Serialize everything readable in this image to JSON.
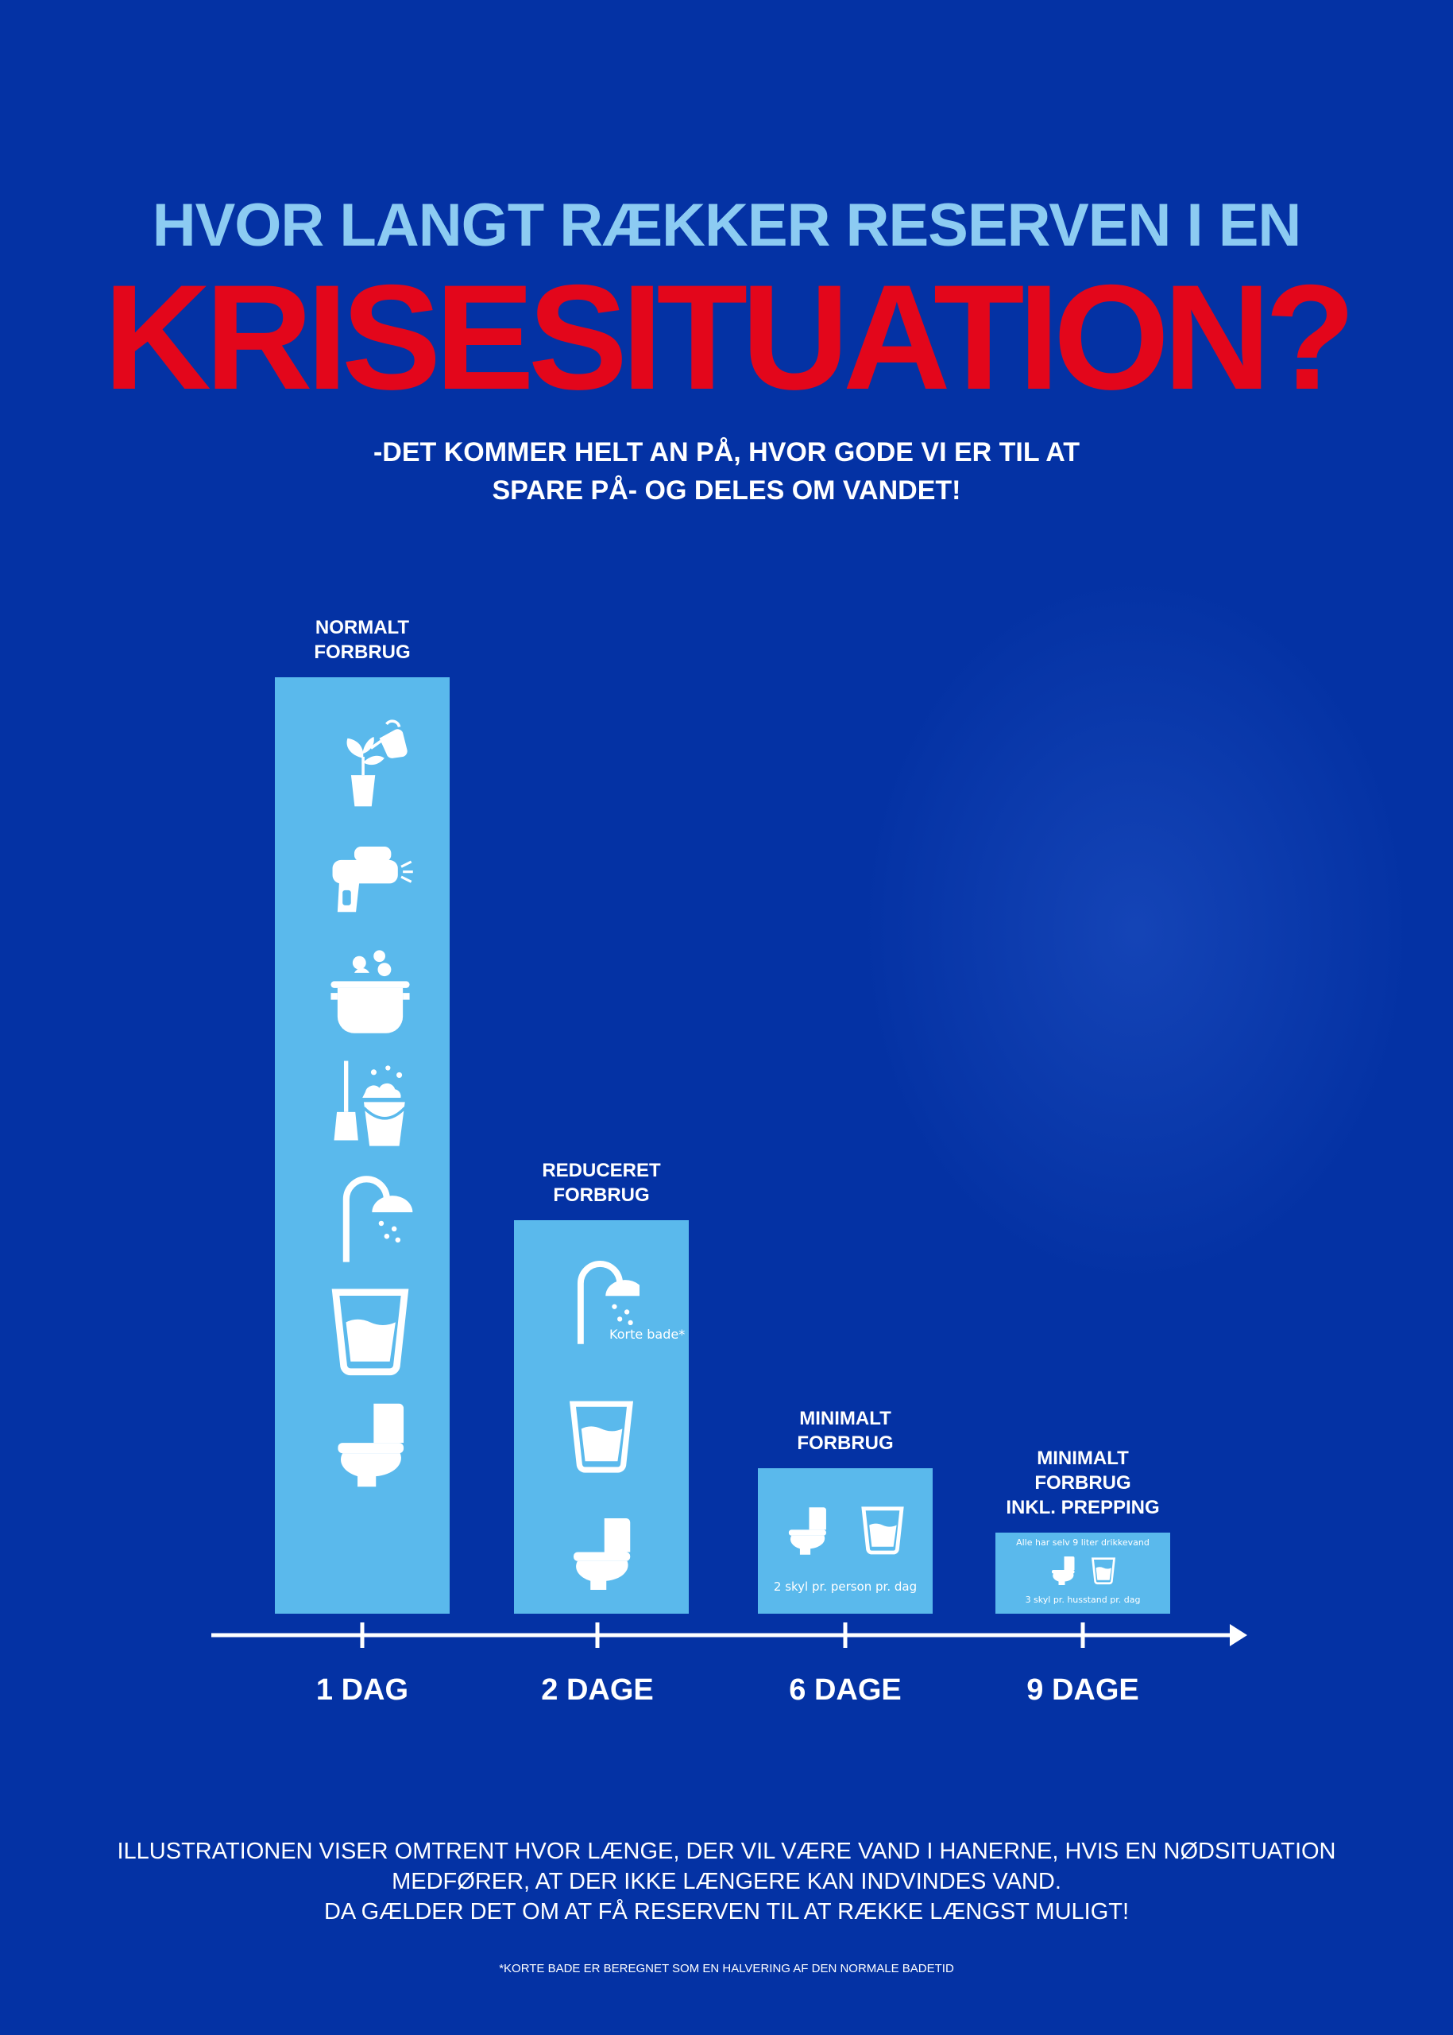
{
  "header": {
    "line1": "HVOR LANGT RÆKKER RESERVEN I EN",
    "line2": "KRISESITUATION?",
    "subtitle_line1": "-DET KOMMER HELT AN PÅ, HVOR GODE VI ER TIL AT",
    "subtitle_line2": "SPARE PÅ- OG DELES OM VANDET!"
  },
  "colors": {
    "background": "#0432a4",
    "headline_light": "#8ccbf2",
    "headline_red": "#e3061b",
    "bar": "#5ab9ec",
    "text": "#ffffff"
  },
  "chart_data": {
    "type": "bar",
    "categories": [
      "1 DAG",
      "2 DAGE",
      "6 DAGE",
      "9 DAGE"
    ],
    "values": [
      100,
      42,
      15.5,
      8.7
    ],
    "bar_labels": [
      [
        "NORMALT",
        "FORBRUG"
      ],
      [
        "REDUCERET",
        "FORBRUG"
      ],
      [
        "MINIMALT",
        "FORBRUG"
      ],
      [
        "MINIMALT",
        "FORBRUG",
        "INKL. PREPPING"
      ]
    ],
    "icons": [
      [
        "watering-plant-icon",
        "water-gun-icon",
        "cooking-pot-icon",
        "cleaning-bucket-icon",
        "shower-icon",
        "water-glass-icon",
        "toilet-icon"
      ],
      [
        "shower-icon",
        "water-glass-icon",
        "toilet-icon"
      ],
      [
        "toilet-icon",
        "water-glass-icon"
      ],
      [
        "toilet-icon",
        "water-glass-icon"
      ]
    ],
    "notes": {
      "shower_note": "Korte bade*",
      "bar3_note": "2 skyl pr. person pr. dag",
      "bar4_top_note": "Alle har selv 9 liter drikkevand",
      "bar4_bottom_note": "3 skyl pr. husstand pr. dag"
    },
    "xlabel": "",
    "ylabel": ""
  },
  "footer": {
    "line1": "ILLUSTRATIONEN VISER OMTRENT HVOR LÆNGE, DER VIL VÆRE VAND I HANERNE, HVIS EN NØDSITUATION",
    "line2": "MEDFØRER, AT DER IKKE LÆNGERE KAN INDVINDES VAND.",
    "line3": "DA GÆLDER DET OM AT FÅ RESERVEN TIL AT RÆKKE LÆNGST MULIGT!",
    "footnote": "*KORTE BADE ER BEREGNET SOM EN HALVERING AF DEN NORMALE BADETID"
  }
}
